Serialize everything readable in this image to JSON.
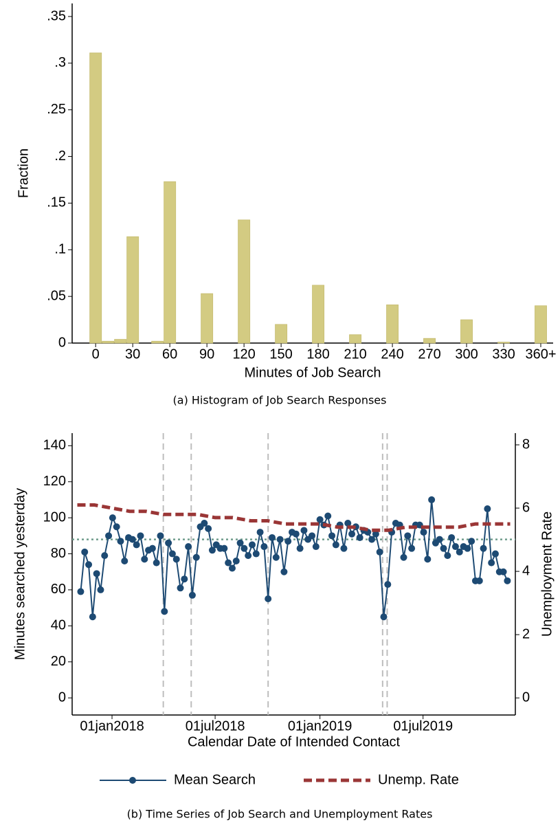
{
  "chart_data": [
    {
      "type": "bar",
      "caption": "(a)  Histogram of Job Search Responses",
      "x_label": "Minutes of Job Search",
      "y_label": "Fraction",
      "x": [
        0,
        10,
        20,
        30,
        50,
        60,
        90,
        120,
        150,
        180,
        210,
        240,
        270,
        300,
        330,
        360
      ],
      "values": [
        0.311,
        0.002,
        0.004,
        0.114,
        0.002,
        0.173,
        0.053,
        0.132,
        0.02,
        0.062,
        0.009,
        0.041,
        0.005,
        0.025,
        0.001,
        0.04
      ],
      "bar_width": 9.5,
      "color": "#d3cb82",
      "xlim": [
        -19,
        370
      ],
      "ylim": [
        0,
        0.364
      ],
      "xticks": [
        0,
        30,
        60,
        90,
        120,
        150,
        180,
        210,
        240,
        270,
        300,
        330,
        {
          "value": 360,
          "label": "360+"
        }
      ],
      "yticks": [
        0,
        {
          "value": 0.05,
          "label": ".05"
        },
        {
          "value": 0.1,
          "label": ".1"
        },
        {
          "value": 0.15,
          "label": ".15"
        },
        {
          "value": 0.2,
          "label": ".2"
        },
        {
          "value": 0.25,
          "label": ".25"
        },
        {
          "value": 0.3,
          "label": ".3"
        },
        {
          "value": 0.35,
          "label": ".35"
        }
      ]
    },
    {
      "type": "line",
      "caption": "(b)  Time Series of Job Search and Unemployment Rates",
      "x_label": "Calendar Date of Intended Contact",
      "y_label": "Minutes searched yesterday",
      "y2_label": "Unemployment Rate",
      "xlim": [
        "2017-10-23",
        "2019-12-10"
      ],
      "ylim": [
        -9.5,
        147
      ],
      "y2lim": [
        -0.54,
        8.37
      ],
      "xticks": [
        {
          "value": "2018-01-01",
          "label": "01jan2018"
        },
        {
          "value": "2018-07-01",
          "label": "01jul2018"
        },
        {
          "value": "2019-01-01",
          "label": "01jan2019"
        },
        {
          "value": "2019-07-01",
          "label": "01jul2019"
        }
      ],
      "yticks": [
        0,
        20,
        40,
        60,
        80,
        100,
        120,
        140
      ],
      "y2ticks": [
        0,
        2,
        4,
        6,
        8
      ],
      "hline": {
        "value": 88,
        "color": "#6f9c8c"
      },
      "vlines": {
        "values": [
          "2018-04-01",
          "2018-05-20",
          "2018-10-02",
          "2019-04-21",
          "2019-04-29"
        ],
        "color": "#bdbdbd"
      },
      "legend": "bottom",
      "series": [
        {
          "name": "Mean Search",
          "color": "#1d4a73",
          "style": "solid",
          "marker": true,
          "x": [
            "2017-11-07",
            "2017-11-14",
            "2017-11-21",
            "2017-11-28",
            "2017-12-05",
            "2017-12-12",
            "2017-12-19",
            "2017-12-26",
            "2018-01-02",
            "2018-01-09",
            "2018-01-16",
            "2018-01-23",
            "2018-01-30",
            "2018-02-06",
            "2018-02-13",
            "2018-02-20",
            "2018-02-27",
            "2018-03-06",
            "2018-03-13",
            "2018-03-20",
            "2018-03-27",
            "2018-04-03",
            "2018-04-10",
            "2018-04-17",
            "2018-04-24",
            "2018-05-01",
            "2018-05-08",
            "2018-05-15",
            "2018-05-22",
            "2018-05-29",
            "2018-06-05",
            "2018-06-12",
            "2018-06-19",
            "2018-06-26",
            "2018-07-03",
            "2018-07-10",
            "2018-07-17",
            "2018-07-24",
            "2018-07-31",
            "2018-08-07",
            "2018-08-14",
            "2018-08-21",
            "2018-08-28",
            "2018-09-04",
            "2018-09-11",
            "2018-09-18",
            "2018-09-25",
            "2018-10-02",
            "2018-10-09",
            "2018-10-16",
            "2018-10-23",
            "2018-10-30",
            "2018-11-06",
            "2018-11-13",
            "2018-11-20",
            "2018-11-27",
            "2018-12-04",
            "2018-12-11",
            "2018-12-18",
            "2018-12-25",
            "2019-01-01",
            "2019-01-08",
            "2019-01-15",
            "2019-01-22",
            "2019-01-29",
            "2019-02-05",
            "2019-02-12",
            "2019-02-19",
            "2019-02-26",
            "2019-03-05",
            "2019-03-12",
            "2019-03-19",
            "2019-03-26",
            "2019-04-02",
            "2019-04-09",
            "2019-04-16",
            "2019-04-23",
            "2019-04-30",
            "2019-05-07",
            "2019-05-14",
            "2019-05-21",
            "2019-05-28",
            "2019-06-04",
            "2019-06-11",
            "2019-06-18",
            "2019-06-25",
            "2019-07-02",
            "2019-07-09",
            "2019-07-16",
            "2019-07-23",
            "2019-07-30",
            "2019-08-06",
            "2019-08-13",
            "2019-08-20",
            "2019-08-27",
            "2019-09-03",
            "2019-09-10",
            "2019-09-17",
            "2019-09-24",
            "2019-10-01",
            "2019-10-08",
            "2019-10-15",
            "2019-10-22",
            "2019-10-29",
            "2019-11-05",
            "2019-11-12",
            "2019-11-19",
            "2019-11-26"
          ],
          "values": [
            59,
            81,
            74,
            45,
            69,
            60,
            79,
            90,
            100,
            95,
            87,
            76,
            89,
            88,
            85,
            90,
            77,
            82,
            83,
            75,
            90,
            48,
            86,
            80,
            77,
            61,
            66,
            84,
            57,
            78,
            95,
            97,
            94,
            82,
            85,
            83,
            83,
            75,
            72,
            76,
            86,
            83,
            79,
            85,
            80,
            92,
            84,
            55,
            89,
            78,
            88,
            70,
            87,
            92,
            91,
            83,
            93,
            88,
            90,
            84,
            99,
            96,
            101,
            90,
            85,
            96,
            83,
            97,
            91,
            95,
            89,
            93,
            92,
            88,
            91,
            81,
            45,
            63,
            92,
            97,
            96,
            78,
            90,
            83,
            96,
            96,
            92,
            77,
            110,
            86,
            88,
            83,
            79,
            89,
            84,
            81,
            84,
            83,
            87,
            65,
            65,
            83,
            105,
            75,
            80,
            70,
            70,
            65
          ]
        },
        {
          "name": "Unemp. Rate",
          "color": "#9a3636",
          "style": "dashed",
          "marker": false,
          "axis": "y2",
          "x": [
            "2017-11-01",
            "2017-12-01",
            "2018-01-01",
            "2018-02-01",
            "2018-03-01",
            "2018-04-01",
            "2018-05-01",
            "2018-06-01",
            "2018-07-01",
            "2018-08-01",
            "2018-09-01",
            "2018-10-01",
            "2018-11-01",
            "2018-12-01",
            "2019-01-01",
            "2019-02-01",
            "2019-03-01",
            "2019-04-01",
            "2019-05-01",
            "2019-06-01",
            "2019-07-01",
            "2019-08-01",
            "2019-09-01",
            "2019-10-01",
            "2019-11-01",
            "2019-12-01"
          ],
          "values": [
            6.1,
            6.1,
            6.0,
            5.9,
            5.9,
            5.8,
            5.8,
            5.8,
            5.7,
            5.7,
            5.6,
            5.6,
            5.5,
            5.5,
            5.5,
            5.4,
            5.4,
            5.3,
            5.3,
            5.4,
            5.4,
            5.4,
            5.4,
            5.5,
            5.5,
            5.5
          ]
        }
      ]
    }
  ]
}
